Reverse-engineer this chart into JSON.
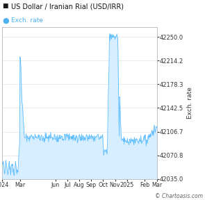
{
  "title": "US Dollar / Iranian Rial (USD/IRR)",
  "legend_label": "Exch. rate",
  "ylabel": "Exch. rate",
  "watermark": "© Chartoasis.com",
  "x_tick_labels": [
    "2024",
    "Mar",
    "Jun",
    "Jul",
    "Aug",
    "Sep",
    "Oct",
    "Nov",
    "2025",
    "Feb",
    "Mar"
  ],
  "x_tick_pos": [
    0.0,
    0.115,
    0.345,
    0.422,
    0.499,
    0.576,
    0.653,
    0.73,
    0.807,
    0.922,
    1.0
  ],
  "ylim": [
    42035.0,
    42265.0
  ],
  "yticks": [
    42035.0,
    42070.8,
    42106.7,
    42142.5,
    42178.3,
    42214.2,
    42250.0
  ],
  "line_color": "#5bbcff",
  "fill_color": "#d6eeff",
  "background_color": "#ffffff",
  "grid_color": "#e0e0e0",
  "title_square_color": "#1a1a1a",
  "legend_dot_color": "#4db0f0"
}
